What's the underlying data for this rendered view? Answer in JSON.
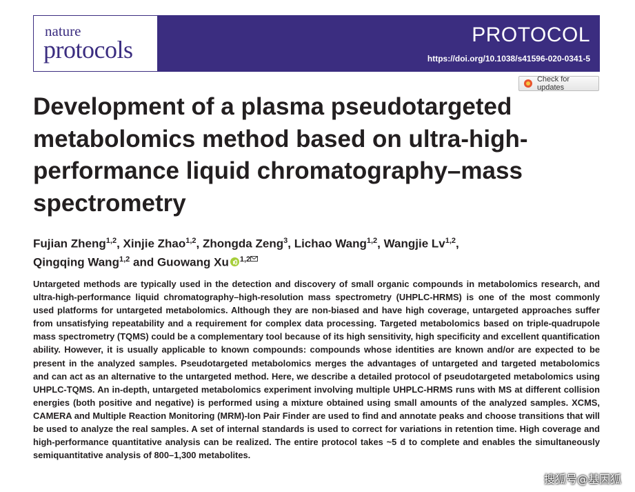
{
  "header": {
    "journal_line1": "nature",
    "journal_line2": "protocols",
    "type": "PROTOCOL",
    "doi": "https://doi.org/10.1038/s41596-020-0341-5",
    "check_updates": "Check for updates"
  },
  "title": "Development of a plasma pseudotargeted metabolomics method based on ultra-high-performance liquid chromatography–mass spectrometry",
  "authors": [
    {
      "name": "Fujian Zheng",
      "affiliations": "1,2"
    },
    {
      "name": "Xinjie Zhao",
      "affiliations": "1,2"
    },
    {
      "name": "Zhongda Zeng",
      "affiliations": "3"
    },
    {
      "name": "Lichao Wang",
      "affiliations": "1,2"
    },
    {
      "name": "Wangjie Lv",
      "affiliations": "1,2"
    },
    {
      "name": "Qingqing Wang",
      "affiliations": "1,2"
    },
    {
      "name": "Guowang Xu",
      "affiliations": "1,2"
    }
  ],
  "author_separator": ",",
  "author_conjunction": "and",
  "abstract": "Untargeted methods are typically used in the detection and discovery of small organic compounds in metabolomics research, and ultra-high-performance liquid chromatography–high-resolution mass spectrometry (UHPLC-HRMS) is one of the most commonly used platforms for untargeted metabolomics. Although they are non-biased and have high coverage, untargeted approaches suffer from unsatisfying repeatability and a requirement for complex data processing. Targeted metabolomics based on triple-quadrupole mass spectrometry (TQMS) could be a complementary tool because of its high sensitivity, high specificity and excellent quantification ability. However, it is usually applicable to known compounds: compounds whose identities are known and/or are expected to be present in the analyzed samples. Pseudotargeted metabolomics merges the advantages of untargeted and targeted metabolomics and can act as an alternative to the untargeted method. Here, we describe a detailed protocol of pseudotargeted metabolomics using UHPLC-TQMS. An in-depth, untargeted metabolomics experiment involving multiple UHPLC-HRMS runs with MS at different collision energies (both positive and negative) is performed using a mixture obtained using small amounts of the analyzed samples. XCMS, CAMERA and Multiple Reaction Monitoring (MRM)-Ion Pair Finder are used to find and annotate peaks and choose transitions that will be used to analyze the real samples. A set of internal standards is used to correct for variations in retention time. High coverage and high-performance quantitative analysis can be realized. The entire protocol takes ~5 d to complete and enables the simultaneously semiquantitative analysis of 800–1,300 metabolites.",
  "watermark": "搜狐号@基因狐"
}
